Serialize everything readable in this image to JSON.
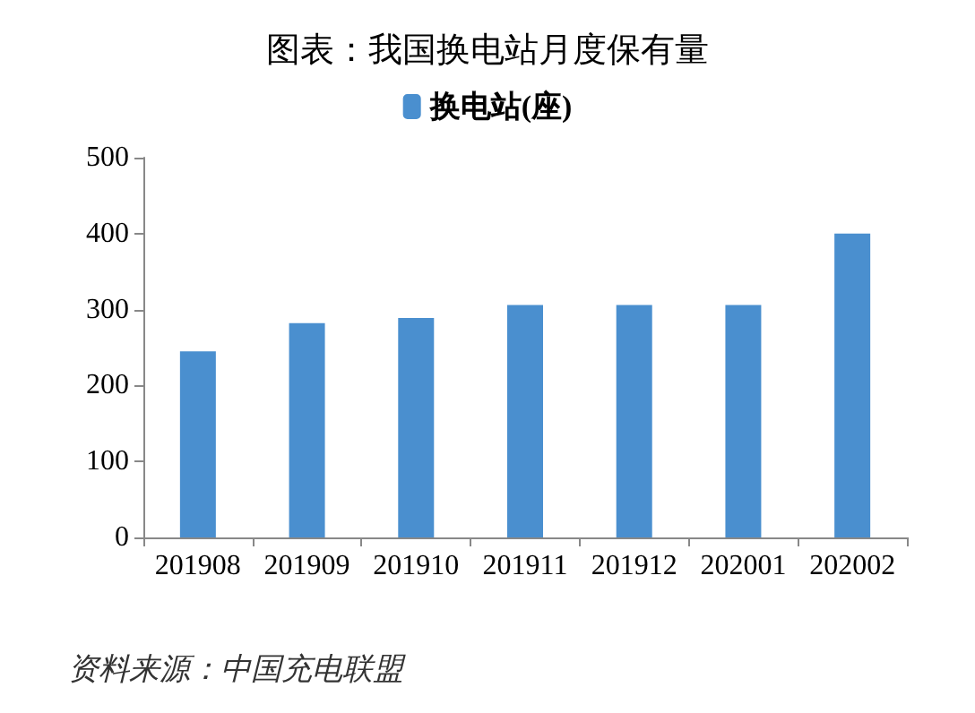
{
  "chart_data": {
    "type": "bar",
    "title": "图表：我国换电站月度保有量",
    "categories": [
      "201908",
      "201909",
      "201910",
      "201911",
      "201912",
      "202001",
      "202002"
    ],
    "series": [
      {
        "name": "换电站(座)",
        "color": "#4a8fcf",
        "values": [
          245,
          282,
          289,
          306,
          306,
          306,
          400
        ]
      }
    ],
    "ylim": [
      0,
      500
    ],
    "yticks": [
      0,
      100,
      200,
      300,
      400,
      500
    ],
    "grid": false,
    "legend": "top",
    "annotations": [
      "资料来源：中国充电联盟"
    ]
  }
}
